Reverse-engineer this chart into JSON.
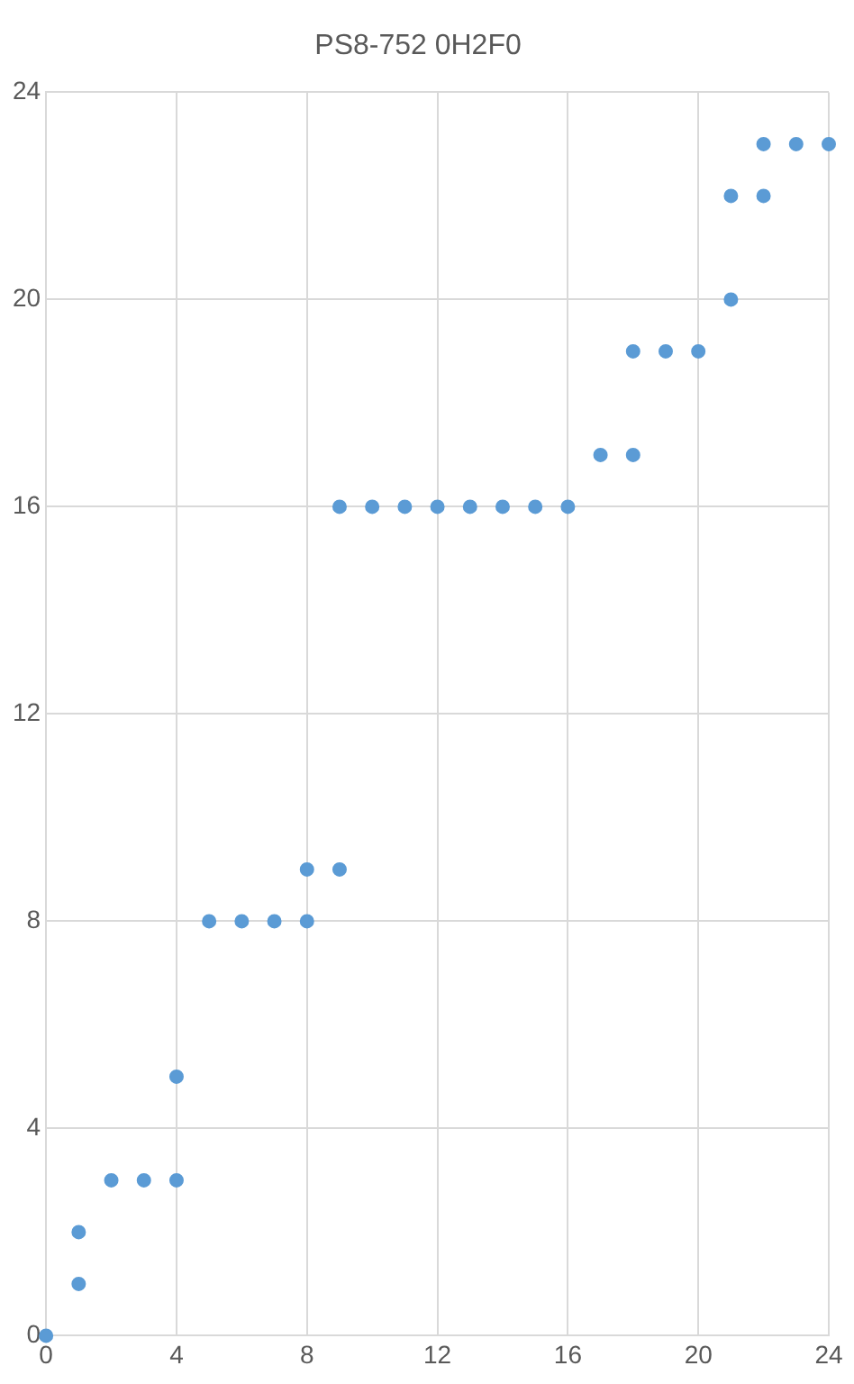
{
  "chart_data": {
    "type": "scatter",
    "title": "PS8-752 0H2F0",
    "x": [
      0,
      1,
      1,
      2,
      3,
      4,
      4,
      5,
      6,
      7,
      8,
      8,
      9,
      9,
      10,
      11,
      12,
      13,
      14,
      15,
      16,
      17,
      18,
      18,
      19,
      20,
      21,
      21,
      22,
      22,
      23,
      24
    ],
    "series": [
      {
        "color": "#5b9bd5",
        "values": [
          0,
          1,
          2,
          3,
          3,
          3,
          5,
          8,
          8,
          8,
          8,
          9,
          9,
          16,
          16,
          16,
          16,
          16,
          16,
          16,
          16,
          17,
          17,
          19,
          19,
          19,
          20,
          22,
          22,
          23,
          23,
          23
        ]
      }
    ],
    "xlim": [
      0,
      24
    ],
    "xticks": [
      0,
      4,
      8,
      12,
      16,
      20,
      24
    ],
    "ylim": [
      0,
      24
    ],
    "yticks": [
      0,
      4,
      8,
      12,
      16,
      20,
      24
    ],
    "grid": true,
    "legend": false,
    "marker": "circle"
  }
}
